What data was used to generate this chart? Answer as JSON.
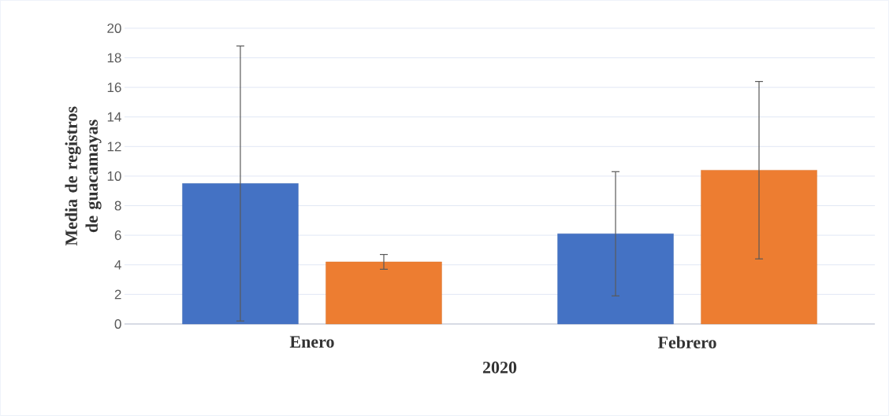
{
  "chart_data": {
    "type": "bar",
    "categories": [
      "Enero",
      "Febrero"
    ],
    "xlabel": "2020",
    "ylabel": "Media de registros de guacamayas",
    "ylim": [
      0,
      20
    ],
    "yticks": [
      0,
      2,
      4,
      6,
      8,
      10,
      12,
      14,
      16,
      18,
      20
    ],
    "grid": "y",
    "series": [
      {
        "color": "#4472c4",
        "values": [
          9.5,
          6.1
        ],
        "errors": [
          9.3,
          4.2
        ]
      },
      {
        "color": "#ed7d31",
        "values": [
          4.2,
          10.4
        ],
        "errors": [
          0.5,
          6.0
        ]
      }
    ]
  }
}
